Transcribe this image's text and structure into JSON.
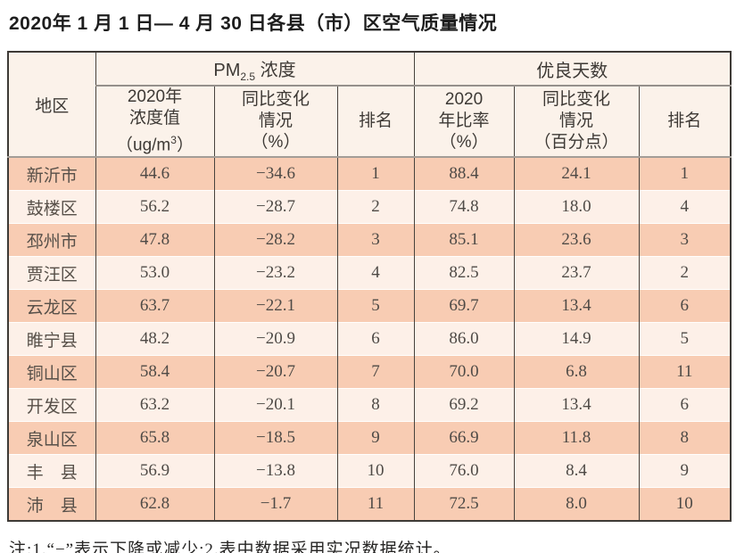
{
  "title": "2020年 1 月 1 日— 4 月 30 日各县（市）区空气质量情况",
  "table": {
    "corner_header": "地区",
    "group_headers": {
      "pm25": {
        "prefix": "PM",
        "subscript": "2.5",
        "suffix": " 浓度"
      },
      "good_days": "优良天数"
    },
    "sub_headers": {
      "pm_value": {
        "line1": "2020年",
        "line2": "浓度值",
        "unit_prefix": "（ug/m",
        "unit_sup": "3",
        "unit_suffix": "）"
      },
      "pm_change": {
        "line1": "同比变化",
        "line2": "情况",
        "line3": "（%）"
      },
      "pm_rank": "排名",
      "gd_ratio": {
        "line1": "2020",
        "line2": "年比率",
        "line3": "（%）"
      },
      "gd_change": {
        "line1": "同比变化",
        "line2": "情况",
        "line3": "（百分点）"
      },
      "gd_rank": "排名"
    },
    "rows": [
      {
        "region": "新沂市",
        "pm_value": "44.6",
        "pm_change": "−34.6",
        "pm_rank": "1",
        "gd_ratio": "88.4",
        "gd_change": "24.1",
        "gd_rank": "1"
      },
      {
        "region": "鼓楼区",
        "pm_value": "56.2",
        "pm_change": "−28.7",
        "pm_rank": "2",
        "gd_ratio": "74.8",
        "gd_change": "18.0",
        "gd_rank": "4"
      },
      {
        "region": "邳州市",
        "pm_value": "47.8",
        "pm_change": "−28.2",
        "pm_rank": "3",
        "gd_ratio": "85.1",
        "gd_change": "23.6",
        "gd_rank": "3"
      },
      {
        "region": "贾汪区",
        "pm_value": "53.0",
        "pm_change": "−23.2",
        "pm_rank": "4",
        "gd_ratio": "82.5",
        "gd_change": "23.7",
        "gd_rank": "2"
      },
      {
        "region": "云龙区",
        "pm_value": "63.7",
        "pm_change": "−22.1",
        "pm_rank": "5",
        "gd_ratio": "69.7",
        "gd_change": "13.4",
        "gd_rank": "6"
      },
      {
        "region": "睢宁县",
        "pm_value": "48.2",
        "pm_change": "−20.9",
        "pm_rank": "6",
        "gd_ratio": "86.0",
        "gd_change": "14.9",
        "gd_rank": "5"
      },
      {
        "region": "铜山区",
        "pm_value": "58.4",
        "pm_change": "−20.7",
        "pm_rank": "7",
        "gd_ratio": "70.0",
        "gd_change": "6.8",
        "gd_rank": "11"
      },
      {
        "region": "开发区",
        "pm_value": "63.2",
        "pm_change": "−20.1",
        "pm_rank": "8",
        "gd_ratio": "69.2",
        "gd_change": "13.4",
        "gd_rank": "6"
      },
      {
        "region": "泉山区",
        "pm_value": "65.8",
        "pm_change": "−18.5",
        "pm_rank": "9",
        "gd_ratio": "66.9",
        "gd_change": "11.8",
        "gd_rank": "8"
      },
      {
        "region": "丰　县",
        "pm_value": "56.9",
        "pm_change": "−13.8",
        "pm_rank": "10",
        "gd_ratio": "76.0",
        "gd_change": "8.4",
        "gd_rank": "9"
      },
      {
        "region": "沛　县",
        "pm_value": "62.8",
        "pm_change": "−1.7",
        "pm_rank": "11",
        "gd_ratio": "72.5",
        "gd_change": "8.0",
        "gd_rank": "10"
      }
    ]
  },
  "footnote": "注:1.“−”表示下降或减少;2.表中数据采用实况数据统计。",
  "colors": {
    "row_dark": "#f8ccb3",
    "row_light": "#fdf0e8",
    "header_bg": "#fbf2ea",
    "border_dark": "#3e3a36",
    "divider_gray": "#95908b",
    "text": "#4e4a46"
  }
}
